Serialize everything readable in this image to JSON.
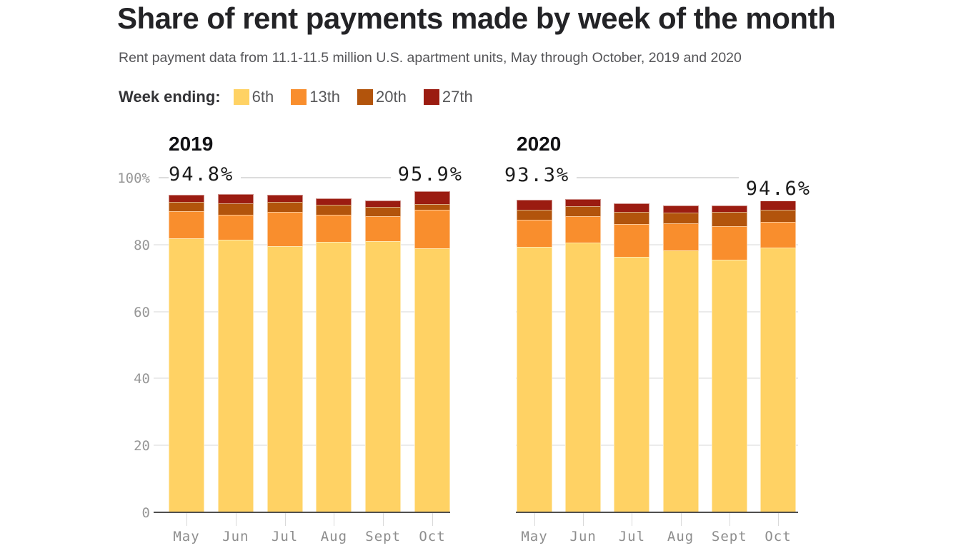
{
  "title": "Share of rent payments made by week of the month",
  "subtitle": "Rent payment data from 11.1-11.5 million U.S. apartment units, May through October, 2019 and 2020",
  "legend": {
    "label": "Week ending:",
    "items": [
      {
        "label": "6th",
        "color": "#ffd264"
      },
      {
        "label": "13th",
        "color": "#f98e2d"
      },
      {
        "label": "20th",
        "color": "#b2540c"
      },
      {
        "label": "27th",
        "color": "#9b1c11"
      }
    ]
  },
  "chart_data": {
    "type": "bar",
    "stacked": true,
    "unit": "percent of rent payments",
    "categories": [
      "May",
      "Jun",
      "Jul",
      "Aug",
      "Sept",
      "Oct"
    ],
    "series_labels": [
      "6th",
      "13th",
      "20th",
      "27th"
    ],
    "series_colors": [
      "#ffd264",
      "#f98e2d",
      "#b2540c",
      "#9b1c11"
    ],
    "axis": {
      "ylim": [
        0,
        100
      ],
      "y_tick_labels": [
        "100%",
        "80",
        "60",
        "40",
        "20",
        "0"
      ],
      "y_tick_values": [
        100,
        80,
        60,
        40,
        20,
        0
      ],
      "grid": true,
      "legend_position": "top"
    },
    "panels": [
      {
        "year": "2019",
        "series": [
          {
            "name": "6th",
            "values": [
              81.8,
              81.5,
              79.6,
              80.8,
              81.0,
              78.8
            ]
          },
          {
            "name": "13th",
            "values": [
              8.1,
              7.5,
              10.1,
              8.1,
              7.4,
              11.5
            ]
          },
          {
            "name": "20th",
            "values": [
              2.8,
              3.3,
              3.1,
              2.9,
              2.9,
              1.8
            ]
          },
          {
            "name": "27th",
            "values": [
              2.1,
              2.7,
              2.1,
              2.0,
              1.8,
              3.8
            ]
          }
        ],
        "annotations": [
          {
            "category": "May",
            "text": "94.8%"
          },
          {
            "category": "Oct",
            "text": "95.9%"
          }
        ]
      },
      {
        "year": "2020",
        "series": [
          {
            "name": "6th",
            "values": [
              79.4,
              80.6,
              76.4,
              78.2,
              75.5,
              79.0
            ]
          },
          {
            "name": "13th",
            "values": [
              8.1,
              7.9,
              9.8,
              8.1,
              10.0,
              7.7
            ]
          },
          {
            "name": "20th",
            "values": [
              2.8,
              2.9,
              3.6,
              3.2,
              4.2,
              3.8
            ]
          },
          {
            "name": "27th",
            "values": [
              3.0,
              2.2,
              2.6,
              2.1,
              2.0,
              4.1
            ]
          }
        ],
        "annotations": [
          {
            "category": "May",
            "text": "93.3%"
          },
          {
            "category": "Oct",
            "text": "94.6%"
          }
        ]
      }
    ]
  }
}
